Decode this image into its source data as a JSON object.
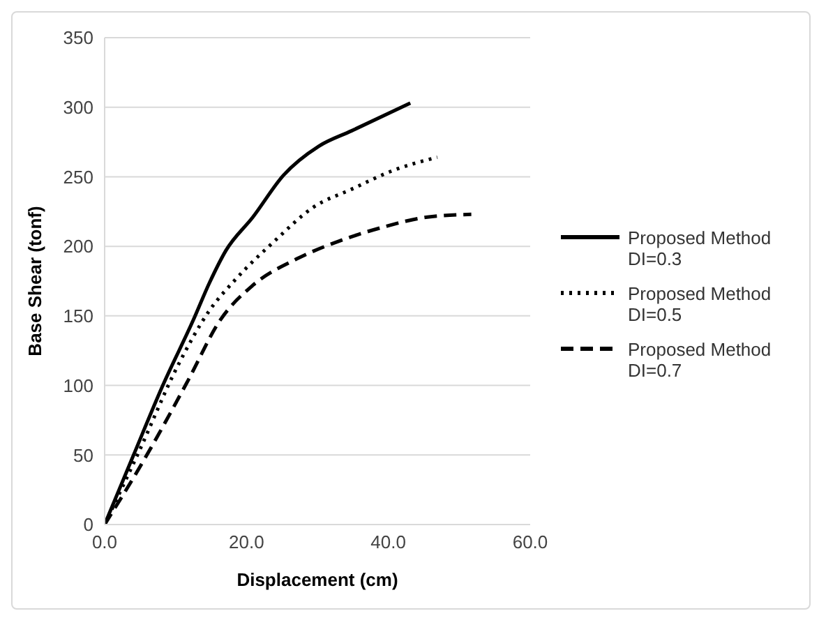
{
  "chart_data": {
    "type": "line",
    "xlabel": "Displacement (cm)",
    "ylabel": "Base Shear (tonf)",
    "xlim": [
      0,
      60
    ],
    "xticks": [
      {
        "value": 0,
        "label": "0.0"
      },
      {
        "value": 20,
        "label": "20.0"
      },
      {
        "value": 40,
        "label": "40.0"
      },
      {
        "value": 60,
        "label": "60.0"
      }
    ],
    "ylim": [
      0,
      350
    ],
    "yticks": [
      0,
      50,
      100,
      150,
      200,
      250,
      300,
      350
    ],
    "grid": "y",
    "legend": "right",
    "marker": "none",
    "series": [
      {
        "name": "Proposed Method DI=0.3",
        "color": "#000000",
        "line_style": "solid",
        "x": [
          0,
          4,
          8.2,
          12.5,
          14.8,
          17.1,
          20.9,
          25.2,
          30.2,
          34.8,
          43.1
        ],
        "values": [
          0,
          49,
          100,
          147,
          174,
          197,
          221,
          251,
          272,
          283,
          303
        ]
      },
      {
        "name": "Proposed Method DI=0.5",
        "color": "#000000",
        "line_style": "dotted",
        "x": [
          0,
          4.8,
          10.2,
          14.8,
          18.6,
          24,
          29.4,
          34.8,
          40.9,
          46.9
        ],
        "values": [
          0,
          52,
          113,
          154,
          177,
          204,
          228,
          241,
          255,
          264
        ]
      },
      {
        "name": "Proposed Method DI=0.7",
        "color": "#000000",
        "line_style": "dashed",
        "x": [
          0,
          5.5,
          11.7,
          16.3,
          20.9,
          27.1,
          33.2,
          39.4,
          45.5,
          51.7
        ],
        "values": [
          0,
          46,
          103,
          147,
          172,
          191,
          204,
          214,
          221,
          223
        ]
      }
    ]
  }
}
